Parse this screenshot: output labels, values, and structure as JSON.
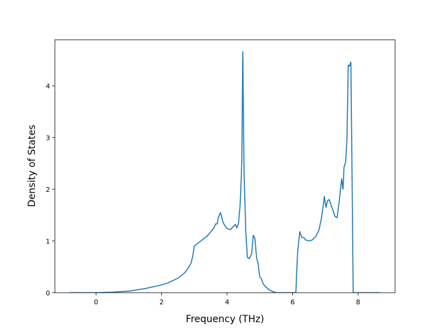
{
  "chart_data": {
    "type": "line",
    "x_label": "Frequency (THz)",
    "y_label": "Density of States",
    "color": "#1f77b4",
    "x": [
      -0.8,
      0,
      0.5,
      1,
      1.5,
      2,
      2.2,
      2.5,
      2.7,
      2.8,
      2.9,
      2.95,
      3.0,
      3.2,
      3.4,
      3.6,
      3.65,
      3.7,
      3.73,
      3.8,
      3.85,
      3.9,
      4.0,
      4.1,
      4.15,
      4.25,
      4.3,
      4.35,
      4.4,
      4.45,
      4.48,
      4.52,
      4.57,
      4.62,
      4.68,
      4.75,
      4.8,
      4.85,
      4.9,
      4.95,
      5.0,
      5.05,
      5.1,
      5.2,
      5.3,
      5.4,
      5.5,
      6.1,
      6.15,
      6.22,
      6.28,
      6.35,
      6.4,
      6.5,
      6.6,
      6.7,
      6.8,
      6.87,
      6.93,
      6.97,
      7.02,
      7.07,
      7.12,
      7.2,
      7.3,
      7.36,
      7.42,
      7.5,
      7.54,
      7.57,
      7.62,
      7.66,
      7.7,
      7.74,
      7.78,
      7.82,
      7.85,
      8.65
    ],
    "values": [
      0,
      0,
      0.01,
      0.03,
      0.08,
      0.15,
      0.19,
      0.28,
      0.38,
      0.46,
      0.57,
      0.7,
      0.9,
      1.0,
      1.1,
      1.25,
      1.33,
      1.33,
      1.45,
      1.55,
      1.42,
      1.33,
      1.24,
      1.22,
      1.25,
      1.32,
      1.25,
      1.35,
      1.7,
      2.5,
      4.66,
      2.3,
      1.2,
      0.68,
      0.66,
      0.75,
      1.11,
      1.05,
      0.68,
      0.55,
      0.3,
      0.27,
      0.17,
      0.1,
      0.05,
      0.02,
      0,
      0,
      0.75,
      1.18,
      1.07,
      1.06,
      1.02,
      1.0,
      1.02,
      1.08,
      1.2,
      1.4,
      1.65,
      1.86,
      1.65,
      1.78,
      1.8,
      1.65,
      1.47,
      1.45,
      1.75,
      2.2,
      2.0,
      2.42,
      2.53,
      2.95,
      4.4,
      4.38,
      4.46,
      2.0,
      0,
      0
    ],
    "xlim": [
      -1.257,
      9.13
    ],
    "ylim": [
      0,
      4.89
    ],
    "xticks": [
      0,
      2,
      4,
      6,
      8
    ],
    "yticks": [
      0,
      1,
      2,
      3,
      4
    ]
  }
}
